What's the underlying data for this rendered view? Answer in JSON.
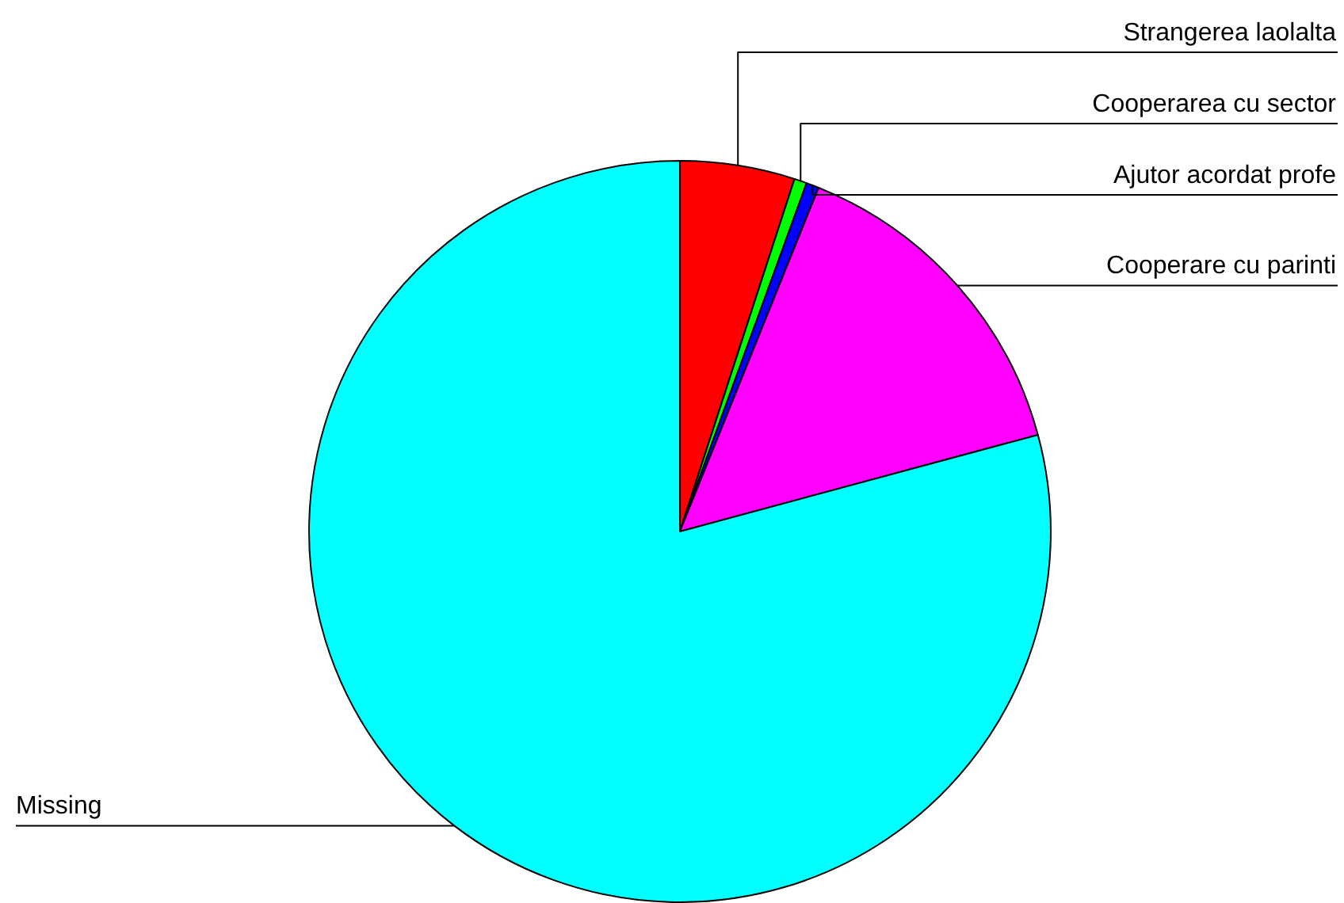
{
  "chart_data": {
    "type": "pie",
    "categories": [
      "Strangerea laolalta",
      "Cooperarea cu sector",
      "Ajutor acordat profe",
      "Cooperare cu parinti",
      "Missing"
    ],
    "values": [
      5.0,
      0.55,
      0.55,
      14.7,
      79.2
    ],
    "colors": [
      "#ff0000",
      "#00ff00",
      "#0000ff",
      "#ff00ff",
      "#00ffff"
    ],
    "legend": false
  }
}
